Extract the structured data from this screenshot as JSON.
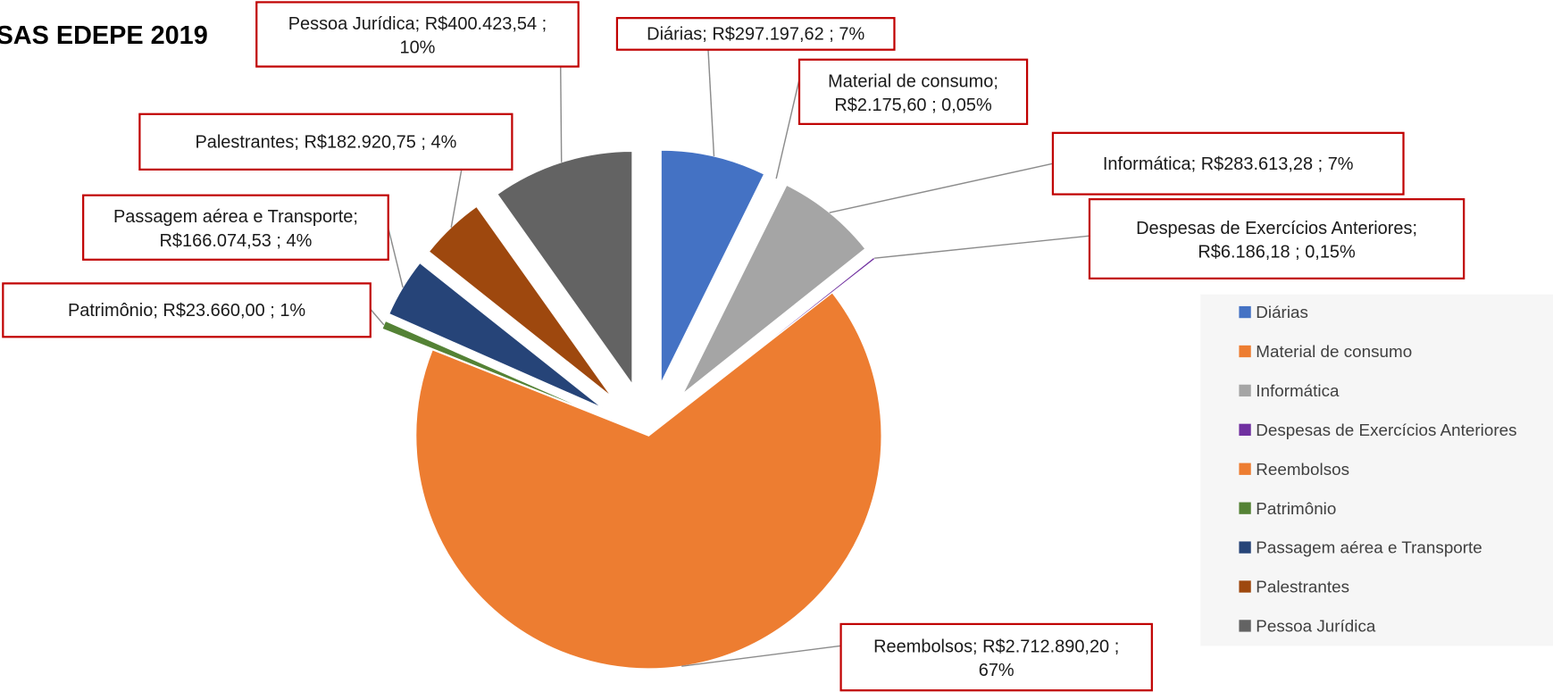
{
  "chart_data": {
    "type": "pie",
    "title": "SAS EDEPE 2019",
    "categories": [
      "Diárias",
      "Material de consumo",
      "Informática",
      "Despesas de Exercícios Anteriores",
      "Reembolsos",
      "Patrimônio",
      "Passagem aérea e Transporte",
      "Palestrantes",
      "Pessoa Jurídica"
    ],
    "values": [
      297197.62,
      2175.6,
      283613.28,
      6186.18,
      2712890.2,
      23660.0,
      166074.53,
      182920.75,
      400423.54
    ],
    "value_labels": [
      "R$297.197,62",
      "R$2.175,60",
      "R$283.613,28",
      "R$6.186,18",
      "R$2.712.890,20",
      "R$23.660,00",
      "R$166.074,53",
      "R$182.920,75",
      "R$400.423,54"
    ],
    "percentages": [
      7,
      0.05,
      7,
      0.15,
      67,
      1,
      4,
      4,
      10
    ],
    "percentage_labels": [
      "7%",
      "0,05%",
      "7%",
      "0,15%",
      "67%",
      "1%",
      "4%",
      "4%",
      "10%"
    ],
    "colors": [
      "#4472c4",
      "#ed7d31",
      "#a5a5a5",
      "#7030a0",
      "#ed7d31",
      "#548235",
      "#264478",
      "#9e480e",
      "#636363"
    ],
    "legend": "right"
  }
}
